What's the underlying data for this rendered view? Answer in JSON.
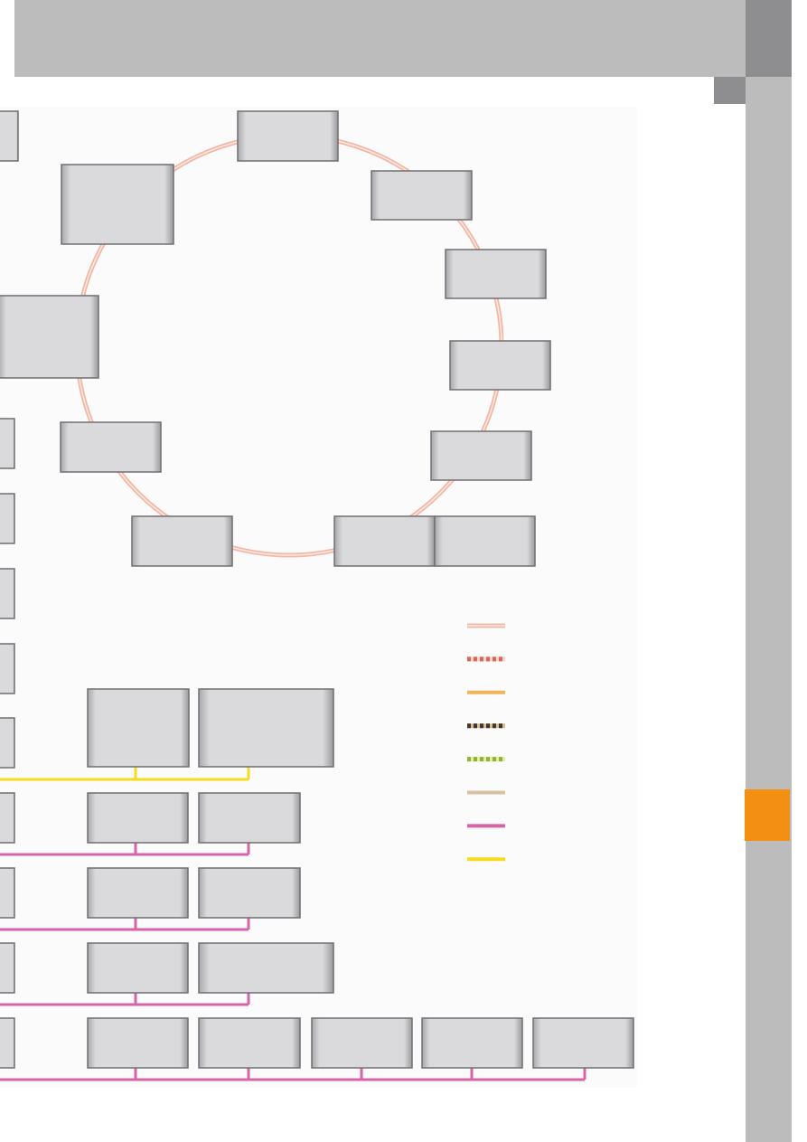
{
  "colors": {
    "header_band": "#bcbcbc",
    "side_band": "#bcbcbc",
    "side_dark": "#8e8d8f",
    "section_tab": "#f39014",
    "box_fill": "#d9d9db",
    "box_border": "#6f6f72",
    "ring_line": "#f2b8a6",
    "bus_yellow": "#f5dc1e",
    "bus_magenta": "#d963a8"
  },
  "legend": [
    {
      "style": "double",
      "color": "#f2b8a6",
      "color2": "#fde8e0"
    },
    {
      "style": "twisted",
      "color": "#d46a5a",
      "color2": "#f6d3c8"
    },
    {
      "style": "solid",
      "color": "#f0b45a"
    },
    {
      "style": "twisted",
      "color": "#3b3630",
      "color2": "#d9b98e"
    },
    {
      "style": "twisted",
      "color": "#8fb23a",
      "color2": "#e6ec9a"
    },
    {
      "style": "solid",
      "color": "#d9c0a2"
    },
    {
      "style": "solid",
      "color": "#d963a8"
    },
    {
      "style": "solid",
      "color": "#f5dc1e"
    }
  ]
}
